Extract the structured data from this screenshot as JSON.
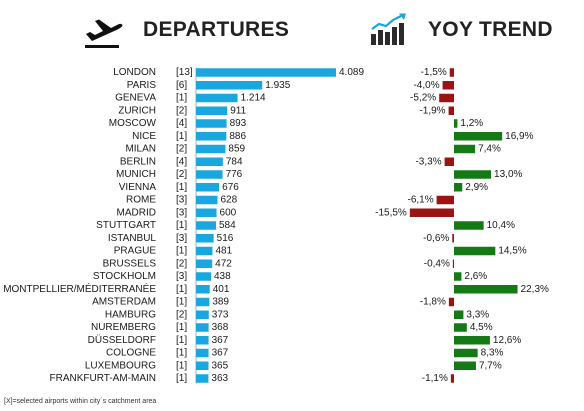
{
  "header": {
    "departures_title": "DEPARTURES",
    "trend_title": "YOY TREND",
    "departures_icon": "airplane-takeoff-icon",
    "trend_icon": "bar-chart-trend-icon"
  },
  "footnote": "[X]=selected airports within city´s catchment area",
  "colors": {
    "departures_bar": "#1aa7e0",
    "trend_positive": "#157a15",
    "trend_negative": "#9b1414"
  },
  "chart_data": [
    {
      "type": "bar",
      "orientation": "horizontal",
      "title": "DEPARTURES",
      "categories": [
        "LONDON",
        "PARIS",
        "GENEVA",
        "ZURICH",
        "MOSCOW",
        "NICE",
        "MILAN",
        "BERLIN",
        "MUNICH",
        "VIENNA",
        "ROME",
        "MADRID",
        "STUTTGART",
        "ISTANBUL",
        "PRAGUE",
        "BRUSSELS",
        "STOCKHOLM",
        "MONTPELLIER/MÉDITERRANÉE",
        "AMSTERDAM",
        "HAMBURG",
        "NUREMBERG",
        "DÜSSELDORF",
        "COLOGNE",
        "LUXEMBOURG",
        "FRANKFURT-AM-MAIN"
      ],
      "airport_counts": [
        "[13]",
        "[6]",
        "[1]",
        "[2]",
        "[4]",
        "[1]",
        "[2]",
        "[4]",
        "[2]",
        "[1]",
        "[3]",
        "[3]",
        "[1]",
        "[3]",
        "[1]",
        "[2]",
        "[3]",
        "[1]",
        "[1]",
        "[2]",
        "[1]",
        "[1]",
        "[1]",
        "[1]",
        "[1]"
      ],
      "values": [
        4089,
        1935,
        1214,
        911,
        893,
        886,
        859,
        784,
        776,
        676,
        628,
        600,
        584,
        516,
        481,
        472,
        438,
        401,
        389,
        373,
        368,
        367,
        367,
        365,
        363
      ],
      "value_labels": [
        "4.089",
        "1.935",
        "1.214",
        "911",
        "893",
        "886",
        "859",
        "784",
        "776",
        "676",
        "628",
        "600",
        "584",
        "516",
        "481",
        "472",
        "438",
        "401",
        "389",
        "373",
        "368",
        "367",
        "367",
        "365",
        "363"
      ],
      "xlim": [
        0,
        4089
      ]
    },
    {
      "type": "bar",
      "orientation": "horizontal",
      "title": "YOY TREND",
      "categories": [
        "LONDON",
        "PARIS",
        "GENEVA",
        "ZURICH",
        "MOSCOW",
        "NICE",
        "MILAN",
        "BERLIN",
        "MUNICH",
        "VIENNA",
        "ROME",
        "MADRID",
        "STUTTGART",
        "ISTANBUL",
        "PRAGUE",
        "BRUSSELS",
        "STOCKHOLM",
        "MONTPELLIER/MÉDITERRANÉE",
        "AMSTERDAM",
        "HAMBURG",
        "NUREMBERG",
        "DÜSSELDORF",
        "COLOGNE",
        "LUXEMBOURG",
        "FRANKFURT-AM-MAIN"
      ],
      "values": [
        -1.5,
        -4.0,
        -5.2,
        -1.9,
        1.2,
        16.9,
        7.4,
        -3.3,
        13.0,
        2.9,
        -6.1,
        -15.5,
        10.4,
        -0.6,
        14.5,
        -0.4,
        2.6,
        22.3,
        -1.8,
        3.3,
        4.5,
        12.6,
        8.3,
        7.7,
        -1.1
      ],
      "value_labels": [
        "-1,5%",
        "-4,0%",
        "-5,2%",
        "-1,9%",
        "1,2%",
        "16,9%",
        "7,4%",
        "-3,3%",
        "13,0%",
        "2,9%",
        "-6,1%",
        "-15,5%",
        "10,4%",
        "-0,6%",
        "14,5%",
        "-0,4%",
        "2,6%",
        "22,3%",
        "-1,8%",
        "3,3%",
        "4,5%",
        "12,6%",
        "8,3%",
        "7,7%",
        "-1,1%"
      ],
      "unit": "%"
    }
  ]
}
